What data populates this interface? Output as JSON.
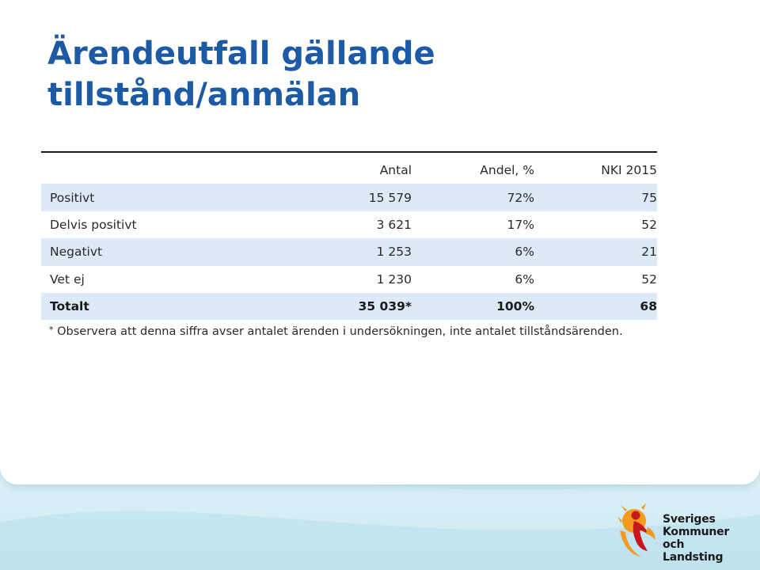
{
  "slide": {
    "title_line1": "Ärendeutfall gällande",
    "title_line2": "tillstånd/anmälan"
  },
  "table": {
    "headers": {
      "label": "",
      "antal": "Antal",
      "andel": "Andel, %",
      "nki": "NKI 2015"
    },
    "rows": [
      {
        "label": "Positivt",
        "antal": "15 579",
        "andel": "72%",
        "nki": "75"
      },
      {
        "label": "Delvis positivt",
        "antal": "3 621",
        "andel": "17%",
        "nki": "52"
      },
      {
        "label": "Negativt",
        "antal": "1 253",
        "andel": "6%",
        "nki": "21"
      },
      {
        "label": "Vet ej",
        "antal": "1 230",
        "andel": "6%",
        "nki": "52"
      }
    ],
    "total": {
      "label": "Totalt",
      "antal": "35 039*",
      "andel": "100%",
      "nki": "68"
    }
  },
  "footnote": {
    "marker": "*",
    "text": " Observera att denna siffra avser antalet ärenden i undersökningen, inte antalet tillståndsärenden."
  },
  "logo": {
    "line1": "Sveriges",
    "line2": "Kommuner",
    "line3": "och Landsting",
    "icon": "skl-figure-logo-icon"
  },
  "colors": {
    "title": "#1c5aa5",
    "row_shade": "#dde9f6",
    "logo_orange": "#f39a1f",
    "logo_red": "#c8161d",
    "background_band": "#cdeaf4"
  }
}
